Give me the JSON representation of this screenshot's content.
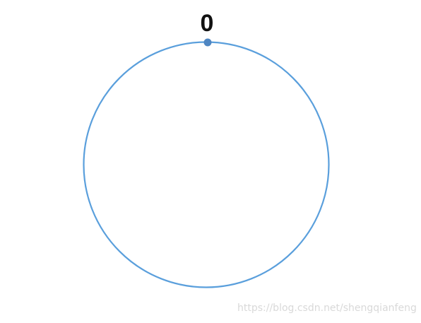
{
  "diagram": {
    "node_label": "0",
    "circle_color": "#5a9fdc",
    "point_color": "#4f86c2",
    "label_color": "#111111"
  },
  "watermark": {
    "text": "https://blog.csdn.net/shengqianfeng"
  }
}
